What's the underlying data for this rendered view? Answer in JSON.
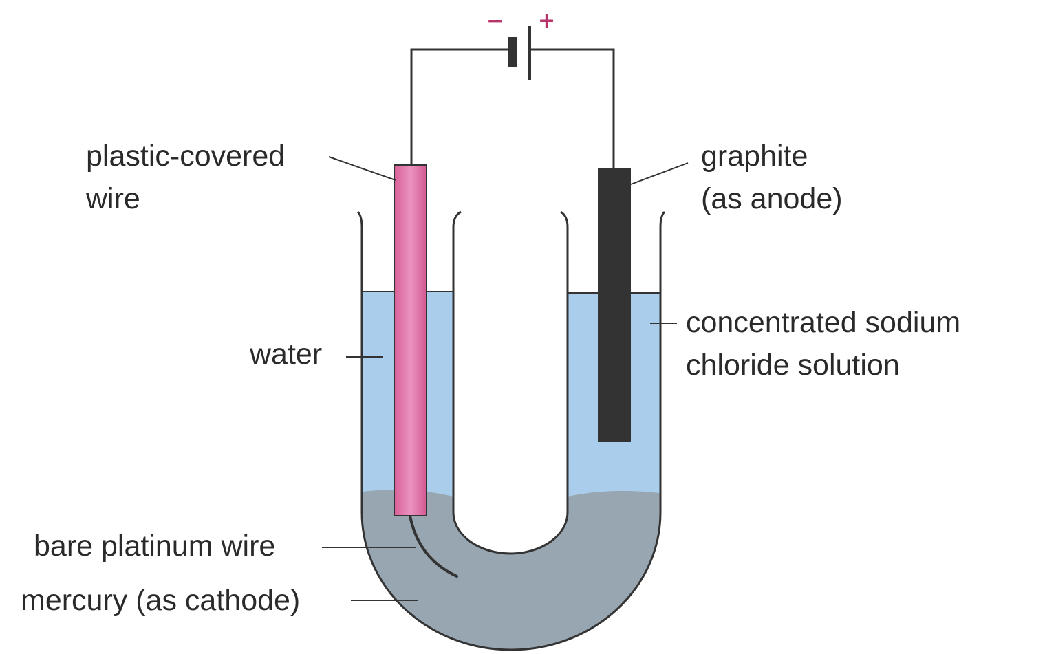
{
  "battery": {
    "negative_sign": "−",
    "positive_sign": "+"
  },
  "labels": {
    "plastic_covered_wire": [
      "plastic-covered",
      "wire"
    ],
    "graphite": [
      "graphite",
      "(as anode)"
    ],
    "water": "water",
    "sodium_chloride": [
      "concentrated sodium",
      "chloride solution"
    ],
    "platinum_wire": "bare platinum wire",
    "mercury": "mercury (as cathode)"
  },
  "colors": {
    "water": "#a9cdeb",
    "mercury": "#98a6b2",
    "plastic_wire": "#e27cae",
    "graphite": "#333333",
    "line": "#333333",
    "sign": "#b8336a"
  }
}
